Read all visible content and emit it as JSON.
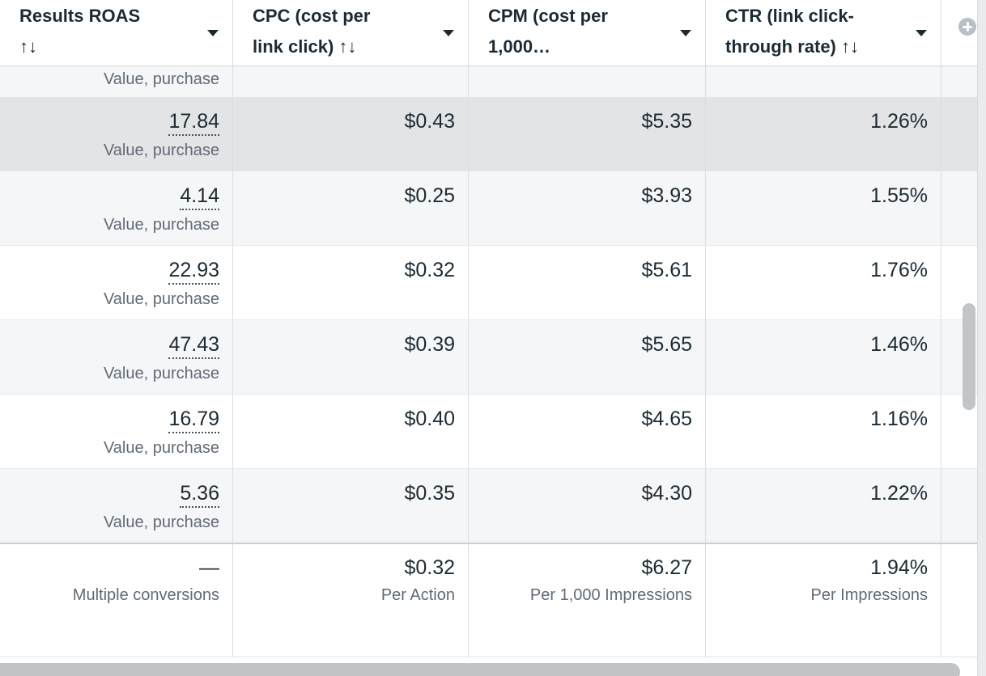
{
  "table": {
    "columns": [
      {
        "id": "results_roas",
        "lines": [
          "Results ROAS",
          "↑↓"
        ],
        "caret_icon": "caret-down"
      },
      {
        "id": "cpc",
        "lines": [
          "CPC (cost per",
          "link click) ↑↓"
        ],
        "caret_icon": "caret-down"
      },
      {
        "id": "cpm",
        "lines": [
          "CPM (cost per",
          "1,000…"
        ],
        "caret_icon": "caret-down"
      },
      {
        "id": "ctr",
        "lines": [
          "CTR (link click-",
          "through rate) ↑↓"
        ],
        "caret_icon": "caret-down"
      }
    ],
    "add_column_icon": "plus-circle",
    "rows": [
      {
        "roas_label": "Value, purchase"
      },
      {
        "roas": "17.84",
        "roas_label": "Value, purchase",
        "cpc": "$0.43",
        "cpm": "$5.35",
        "ctr": "1.26%",
        "highlighted": true
      },
      {
        "roas": "4.14",
        "roas_label": "Value, purchase",
        "cpc": "$0.25",
        "cpm": "$3.93",
        "ctr": "1.55%"
      },
      {
        "roas": "22.93",
        "roas_label": "Value, purchase",
        "cpc": "$0.32",
        "cpm": "$5.61",
        "ctr": "1.76%"
      },
      {
        "roas": "47.43",
        "roas_label": "Value, purchase",
        "cpc": "$0.39",
        "cpm": "$5.65",
        "ctr": "1.46%"
      },
      {
        "roas": "16.79",
        "roas_label": "Value, purchase",
        "cpc": "$0.40",
        "cpm": "$4.65",
        "ctr": "1.16%"
      },
      {
        "roas": "5.36",
        "roas_label": "Value, purchase",
        "cpc": "$0.35",
        "cpm": "$4.30",
        "ctr": "1.22%"
      }
    ],
    "summary": {
      "roas_value": "—",
      "roas_label": "Multiple conversions",
      "cpc_value": "$0.32",
      "cpc_label": "Per Action",
      "cpm_value": "$6.27",
      "cpm_label": "Per 1,000 Impressions",
      "ctr_value": "1.94%",
      "ctr_label": "Per Impressions"
    }
  },
  "colors": {
    "text_primary": "#1c2b33",
    "text_secondary": "#606a76",
    "stripe": "#f5f6f7",
    "hover_row": "#e3e4e5",
    "col_line": "#dbdde0",
    "thumb": "#c2c5c8",
    "plus": "#b9bfc6",
    "gutter": "#e9ebee"
  }
}
